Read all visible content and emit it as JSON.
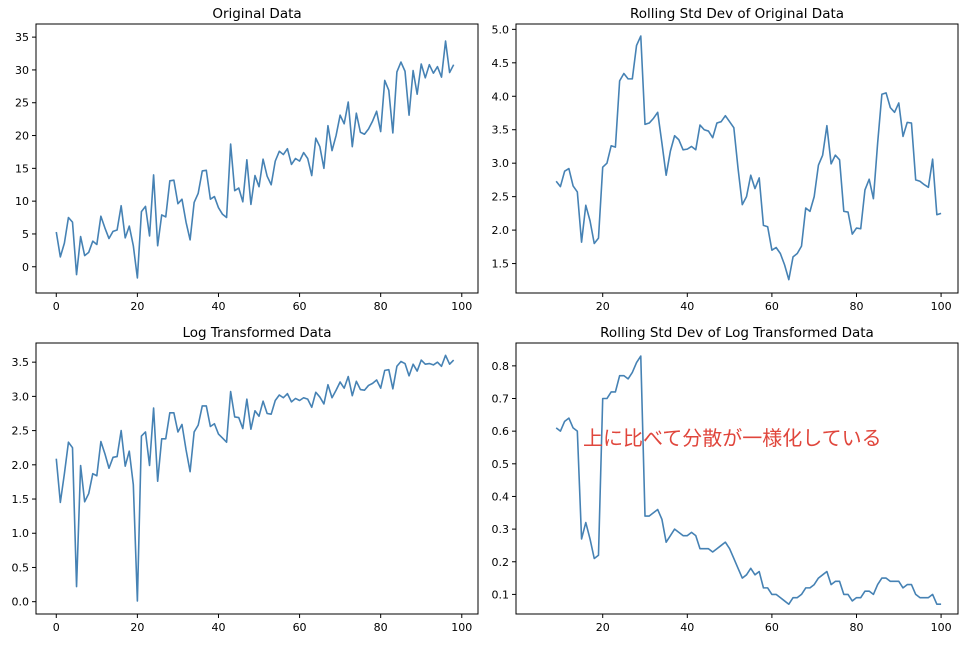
{
  "figure": {
    "annotation": "上に比べて分散が一様化している",
    "annotation_color": "#e0463c"
  },
  "chart_data": [
    {
      "type": "line",
      "title": "Original Data",
      "xlabel": "",
      "ylabel": "",
      "xlim": [
        -5,
        104
      ],
      "ylim": [
        -4,
        37
      ],
      "xticks": [
        0,
        20,
        40,
        60,
        80,
        100
      ],
      "yticks": [
        0,
        5,
        10,
        15,
        20,
        25,
        30,
        35
      ],
      "line_color": "#4682b4",
      "x_start": 0,
      "values": [
        5.3,
        1.5,
        3.6,
        7.5,
        6.8,
        -1.2,
        4.6,
        1.7,
        2.2,
        3.9,
        3.4,
        7.7,
        5.9,
        4.3,
        5.4,
        5.6,
        9.3,
        4.4,
        6.2,
        3.2,
        -1.7,
        8.4,
        9.2,
        4.7,
        14.0,
        3.2,
        7.9,
        7.6,
        13.1,
        13.2,
        9.6,
        10.3,
        6.8,
        4.1,
        9.8,
        11.2,
        14.6,
        14.7,
        10.3,
        10.7,
        9.0,
        8.0,
        7.5,
        18.7,
        11.6,
        12.0,
        9.9,
        16.3,
        9.5,
        13.9,
        12.2,
        16.4,
        13.8,
        12.5,
        16.1,
        17.6,
        17.1,
        18.0,
        15.6,
        16.5,
        16.1,
        17.4,
        16.5,
        13.9,
        19.6,
        18.3,
        15.0,
        21.5,
        17.7,
        20.0,
        23.1,
        21.8,
        25.1,
        18.3,
        23.4,
        20.5,
        20.2,
        21.0,
        22.2,
        23.7,
        20.6,
        28.4,
        26.9,
        20.4,
        29.7,
        31.2,
        29.8,
        23.1,
        29.9,
        26.3,
        30.9,
        28.8,
        30.8,
        29.5,
        30.5,
        28.9,
        34.4,
        29.6,
        30.8
      ]
    },
    {
      "type": "line",
      "title": "Rolling Std Dev of Original Data",
      "xlabel": "",
      "ylabel": "",
      "xlim": [
        -0.5,
        104
      ],
      "ylim": [
        1.06,
        5.08
      ],
      "xticks": [
        20,
        40,
        60,
        80,
        100
      ],
      "yticks": [
        1.5,
        2.0,
        2.5,
        3.0,
        3.5,
        4.0,
        4.5,
        5.0
      ],
      "line_color": "#4682b4",
      "x_start": 9,
      "values": [
        2.73,
        2.65,
        2.88,
        2.92,
        2.66,
        2.57,
        1.82,
        2.37,
        2.14,
        1.8,
        1.88,
        2.94,
        3.0,
        3.26,
        3.24,
        4.23,
        4.34,
        4.26,
        4.26,
        4.76,
        4.9,
        3.58,
        3.6,
        3.67,
        3.76,
        3.3,
        2.82,
        3.18,
        3.41,
        3.35,
        3.2,
        3.21,
        3.25,
        3.2,
        3.57,
        3.5,
        3.48,
        3.38,
        3.6,
        3.62,
        3.71,
        3.62,
        3.53,
        2.92,
        2.38,
        2.5,
        2.82,
        2.62,
        2.78,
        2.07,
        2.05,
        1.7,
        1.74,
        1.65,
        1.48,
        1.26,
        1.6,
        1.65,
        1.76,
        2.33,
        2.28,
        2.5,
        2.97,
        3.12,
        3.56,
        2.99,
        3.12,
        3.05,
        2.28,
        2.27,
        1.94,
        2.03,
        2.02,
        2.6,
        2.76,
        2.47,
        3.3,
        4.03,
        4.05,
        3.83,
        3.76,
        3.9,
        3.4,
        3.61,
        3.6,
        2.75,
        2.73,
        2.68,
        2.64,
        3.06,
        2.23,
        2.25
      ]
    },
    {
      "type": "line",
      "title": "Log Transformed Data",
      "xlabel": "",
      "ylabel": "",
      "xlim": [
        -5,
        104
      ],
      "ylim": [
        -0.18,
        3.78
      ],
      "xticks": [
        0,
        20,
        40,
        60,
        80,
        100
      ],
      "yticks": [
        0.0,
        0.5,
        1.0,
        1.5,
        2.0,
        2.5,
        3.0,
        3.5
      ],
      "line_color": "#4682b4",
      "x_start": 0,
      "values": [
        2.09,
        1.45,
        1.87,
        2.33,
        2.25,
        0.22,
        1.99,
        1.46,
        1.58,
        1.87,
        1.84,
        2.34,
        2.16,
        1.95,
        2.11,
        2.12,
        2.5,
        1.98,
        2.2,
        1.71,
        0.01,
        2.42,
        2.48,
        1.99,
        2.83,
        1.76,
        2.38,
        2.38,
        2.76,
        2.76,
        2.48,
        2.59,
        2.22,
        1.9,
        2.48,
        2.58,
        2.86,
        2.86,
        2.56,
        2.6,
        2.45,
        2.39,
        2.33,
        3.07,
        2.7,
        2.69,
        2.53,
        2.96,
        2.52,
        2.79,
        2.71,
        2.93,
        2.75,
        2.74,
        2.94,
        3.02,
        2.98,
        3.04,
        2.92,
        2.97,
        2.94,
        2.98,
        2.96,
        2.84,
        3.06,
        2.99,
        2.89,
        3.17,
        2.98,
        3.09,
        3.21,
        3.12,
        3.29,
        3.01,
        3.22,
        3.1,
        3.09,
        3.16,
        3.19,
        3.24,
        3.12,
        3.38,
        3.39,
        3.11,
        3.44,
        3.51,
        3.48,
        3.3,
        3.47,
        3.37,
        3.53,
        3.47,
        3.48,
        3.46,
        3.5,
        3.44,
        3.6,
        3.47,
        3.53
      ]
    },
    {
      "type": "line",
      "title": "Rolling Std Dev of Log Transformed Data",
      "xlabel": "",
      "ylabel": "",
      "xlim": [
        -0.5,
        104
      ],
      "ylim": [
        0.04,
        0.87
      ],
      "xticks": [
        20,
        40,
        60,
        80,
        100
      ],
      "yticks": [
        0.1,
        0.2,
        0.3,
        0.4,
        0.5,
        0.6,
        0.7,
        0.8
      ],
      "line_color": "#4682b4",
      "x_start": 9,
      "values": [
        0.61,
        0.6,
        0.63,
        0.64,
        0.61,
        0.6,
        0.27,
        0.32,
        0.27,
        0.21,
        0.22,
        0.7,
        0.7,
        0.72,
        0.72,
        0.77,
        0.77,
        0.76,
        0.78,
        0.81,
        0.83,
        0.34,
        0.34,
        0.35,
        0.36,
        0.33,
        0.26,
        0.28,
        0.3,
        0.29,
        0.28,
        0.28,
        0.29,
        0.28,
        0.24,
        0.24,
        0.24,
        0.23,
        0.24,
        0.25,
        0.26,
        0.24,
        0.21,
        0.18,
        0.15,
        0.16,
        0.18,
        0.16,
        0.17,
        0.12,
        0.12,
        0.1,
        0.1,
        0.09,
        0.08,
        0.07,
        0.09,
        0.09,
        0.1,
        0.12,
        0.12,
        0.13,
        0.15,
        0.16,
        0.17,
        0.13,
        0.14,
        0.14,
        0.1,
        0.1,
        0.08,
        0.09,
        0.09,
        0.11,
        0.11,
        0.1,
        0.13,
        0.15,
        0.15,
        0.14,
        0.14,
        0.14,
        0.12,
        0.13,
        0.13,
        0.1,
        0.09,
        0.09,
        0.09,
        0.1,
        0.07,
        0.07
      ]
    }
  ]
}
